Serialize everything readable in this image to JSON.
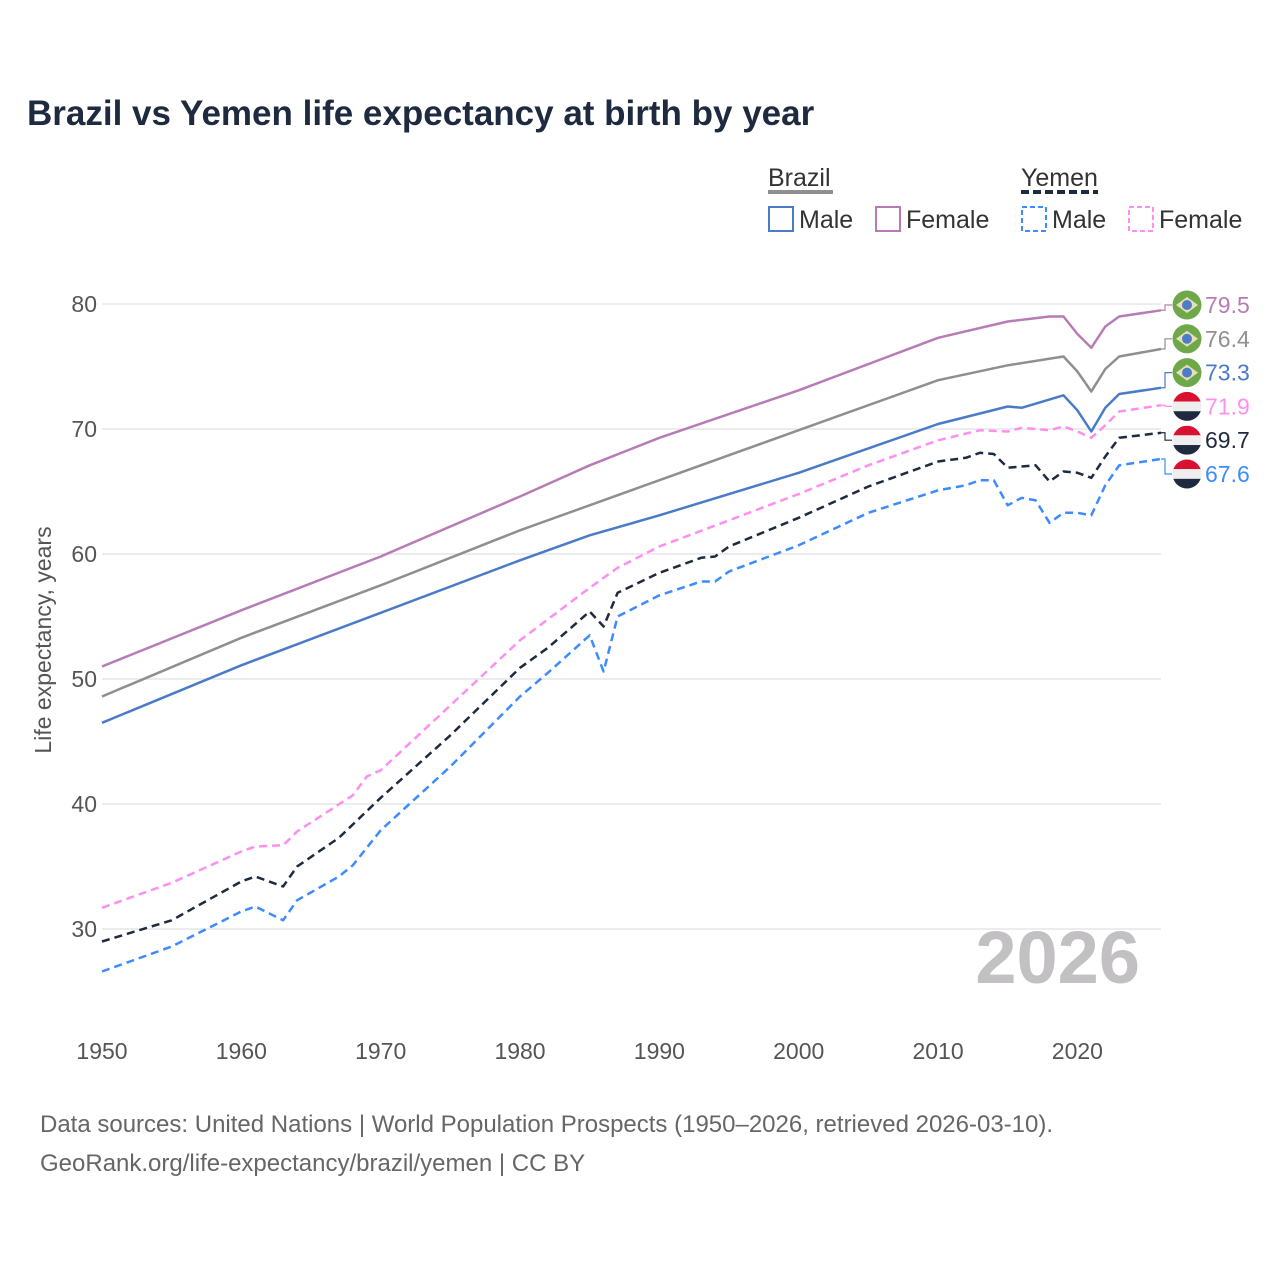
{
  "title": "Brazil vs Yemen life expectancy at birth by year",
  "footer": {
    "line1": "Data sources: United Nations | World Population Prospects (1950–2026, retrieved 2026-03-10).",
    "line2": "GeoRank.org/life-expectancy/brazil/yemen | CC BY"
  },
  "legend": {
    "groups": [
      {
        "country": "Brazil",
        "items": [
          "Male",
          "Female"
        ]
      },
      {
        "country": "Yemen",
        "items": [
          "Male",
          "Female"
        ]
      }
    ]
  },
  "chart_data": {
    "type": "line",
    "title": "Brazil vs Yemen life expectancy at birth by year",
    "xlabel": "",
    "ylabel": "Life expectancy, years",
    "xlim": [
      1950,
      2026
    ],
    "ylim": [
      25,
      83
    ],
    "xticks": [
      1950,
      1960,
      1970,
      1980,
      1990,
      2000,
      2010,
      2020
    ],
    "yticks": [
      30,
      40,
      50,
      60,
      70,
      80
    ],
    "grid": true,
    "watermark": "2026",
    "legend_position": "top-right",
    "series": [
      {
        "name": "Brazil Female",
        "country": "Brazil",
        "flag": "brazil-flag",
        "color": "#b77cb5",
        "dashed": false,
        "end_label": "79.5",
        "points": [
          [
            1950,
            51.0
          ],
          [
            1960,
            55.5
          ],
          [
            1970,
            59.8
          ],
          [
            1980,
            64.6
          ],
          [
            1985,
            67.1
          ],
          [
            1990,
            69.3
          ],
          [
            2000,
            73.1
          ],
          [
            2010,
            77.3
          ],
          [
            2015,
            78.6
          ],
          [
            2018,
            79.0
          ],
          [
            2019,
            79.0
          ],
          [
            2020,
            77.6
          ],
          [
            2021,
            76.5
          ],
          [
            2022,
            78.2
          ],
          [
            2023,
            79.0
          ],
          [
            2026,
            79.5
          ]
        ]
      },
      {
        "name": "Brazil",
        "country": "Brazil",
        "flag": "brazil-flag",
        "color": "#8f8f8f",
        "dashed": false,
        "end_label": "76.4",
        "points": [
          [
            1950,
            48.6
          ],
          [
            1960,
            53.3
          ],
          [
            1970,
            57.5
          ],
          [
            1980,
            61.9
          ],
          [
            1990,
            65.9
          ],
          [
            2000,
            69.9
          ],
          [
            2010,
            73.9
          ],
          [
            2015,
            75.1
          ],
          [
            2019,
            75.8
          ],
          [
            2020,
            74.6
          ],
          [
            2021,
            73.0
          ],
          [
            2022,
            74.8
          ],
          [
            2023,
            75.8
          ],
          [
            2026,
            76.4
          ]
        ]
      },
      {
        "name": "Brazil Male",
        "country": "Brazil",
        "flag": "brazil-flag",
        "color": "#4a7bc8",
        "dashed": false,
        "end_label": "73.3",
        "points": [
          [
            1950,
            46.5
          ],
          [
            1960,
            51.1
          ],
          [
            1970,
            55.3
          ],
          [
            1980,
            59.5
          ],
          [
            1985,
            61.5
          ],
          [
            1990,
            63.1
          ],
          [
            2000,
            66.5
          ],
          [
            2010,
            70.4
          ],
          [
            2015,
            71.8
          ],
          [
            2016,
            71.7
          ],
          [
            2019,
            72.7
          ],
          [
            2020,
            71.5
          ],
          [
            2021,
            69.8
          ],
          [
            2022,
            71.7
          ],
          [
            2023,
            72.8
          ],
          [
            2026,
            73.3
          ]
        ]
      },
      {
        "name": "Yemen Female",
        "country": "Yemen",
        "flag": "yemen-flag",
        "color": "#ff8ef0",
        "dashed": true,
        "end_label": "71.9",
        "points": [
          [
            1950,
            31.7
          ],
          [
            1955,
            33.7
          ],
          [
            1960,
            36.2
          ],
          [
            1961,
            36.6
          ],
          [
            1963,
            36.7
          ],
          [
            1964,
            37.8
          ],
          [
            1968,
            40.7
          ],
          [
            1969,
            42.2
          ],
          [
            1970,
            42.7
          ],
          [
            1975,
            47.9
          ],
          [
            1980,
            53.1
          ],
          [
            1985,
            57.3
          ],
          [
            1986,
            58.1
          ],
          [
            1987,
            58.9
          ],
          [
            1990,
            60.6
          ],
          [
            1995,
            62.7
          ],
          [
            2000,
            64.8
          ],
          [
            2005,
            67.1
          ],
          [
            2010,
            69.1
          ],
          [
            2013,
            69.9
          ],
          [
            2015,
            69.8
          ],
          [
            2016,
            70.1
          ],
          [
            2018,
            69.9
          ],
          [
            2019,
            70.2
          ],
          [
            2020,
            69.8
          ],
          [
            2021,
            69.3
          ],
          [
            2022,
            70.3
          ],
          [
            2023,
            71.4
          ],
          [
            2026,
            71.9
          ]
        ]
      },
      {
        "name": "Yemen",
        "country": "Yemen",
        "flag": "yemen-flag",
        "color": "#1e2a3f",
        "dashed": true,
        "end_label": "69.7",
        "points": [
          [
            1950,
            29.0
          ],
          [
            1955,
            30.7
          ],
          [
            1960,
            33.8
          ],
          [
            1961,
            34.2
          ],
          [
            1963,
            33.4
          ],
          [
            1964,
            35.0
          ],
          [
            1967,
            37.3
          ],
          [
            1970,
            40.5
          ],
          [
            1975,
            45.5
          ],
          [
            1980,
            50.9
          ],
          [
            1982,
            52.5
          ],
          [
            1985,
            55.4
          ],
          [
            1986,
            54.2
          ],
          [
            1987,
            56.9
          ],
          [
            1990,
            58.5
          ],
          [
            1993,
            59.7
          ],
          [
            1994,
            59.8
          ],
          [
            1995,
            60.6
          ],
          [
            2000,
            62.9
          ],
          [
            2005,
            65.4
          ],
          [
            2010,
            67.4
          ],
          [
            2012,
            67.7
          ],
          [
            2013,
            68.1
          ],
          [
            2014,
            68.0
          ],
          [
            2015,
            66.9
          ],
          [
            2017,
            67.1
          ],
          [
            2018,
            65.8
          ],
          [
            2019,
            66.6
          ],
          [
            2020,
            66.5
          ],
          [
            2021,
            66.1
          ],
          [
            2022,
            67.8
          ],
          [
            2023,
            69.3
          ],
          [
            2026,
            69.7
          ]
        ]
      },
      {
        "name": "Yemen Male",
        "country": "Yemen",
        "flag": "yemen-flag",
        "color": "#3d8bff",
        "dashed": true,
        "end_label": "67.6",
        "points": [
          [
            1950,
            26.6
          ],
          [
            1955,
            28.6
          ],
          [
            1960,
            31.4
          ],
          [
            1961,
            31.8
          ],
          [
            1963,
            30.7
          ],
          [
            1964,
            32.3
          ],
          [
            1967,
            34.2
          ],
          [
            1968,
            35.1
          ],
          [
            1970,
            37.9
          ],
          [
            1975,
            43.0
          ],
          [
            1980,
            48.6
          ],
          [
            1982,
            50.5
          ],
          [
            1985,
            53.5
          ],
          [
            1986,
            50.6
          ],
          [
            1987,
            55.0
          ],
          [
            1990,
            56.7
          ],
          [
            1993,
            57.8
          ],
          [
            1994,
            57.8
          ],
          [
            1995,
            58.6
          ],
          [
            2000,
            60.7
          ],
          [
            2005,
            63.3
          ],
          [
            2010,
            65.1
          ],
          [
            2012,
            65.5
          ],
          [
            2013,
            65.9
          ],
          [
            2014,
            65.9
          ],
          [
            2015,
            63.9
          ],
          [
            2016,
            64.5
          ],
          [
            2017,
            64.3
          ],
          [
            2018,
            62.5
          ],
          [
            2019,
            63.3
          ],
          [
            2020,
            63.3
          ],
          [
            2021,
            63.1
          ],
          [
            2022,
            65.5
          ],
          [
            2023,
            67.1
          ],
          [
            2026,
            67.6
          ]
        ]
      }
    ]
  }
}
